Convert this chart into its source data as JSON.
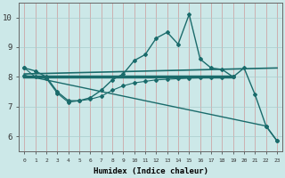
{
  "xlabel": "Humidex (Indice chaleur)",
  "bg_color": "#cce8e8",
  "grid_color": "#aacccc",
  "line_color": "#1a6b6b",
  "x_ticks": [
    0,
    1,
    2,
    3,
    4,
    5,
    6,
    7,
    8,
    9,
    10,
    11,
    12,
    13,
    14,
    15,
    16,
    17,
    18,
    19,
    20,
    21,
    22,
    23
  ],
  "y_ticks": [
    6,
    7,
    8,
    9,
    10
  ],
  "ylim": [
    5.5,
    10.5
  ],
  "xlim": [
    -0.5,
    23.5
  ],
  "series": [
    {
      "x": [
        0,
        1,
        2,
        3,
        4,
        5,
        6,
        7,
        8,
        9,
        10,
        11,
        12,
        13,
        14,
        15,
        16,
        17,
        18,
        19,
        20,
        21,
        22,
        23
      ],
      "y": [
        8.3,
        8.2,
        8.0,
        7.5,
        7.2,
        7.2,
        7.3,
        7.55,
        7.9,
        8.1,
        8.55,
        8.75,
        9.3,
        9.5,
        9.1,
        10.1,
        8.6,
        8.3,
        8.25,
        8.0,
        8.3,
        7.4,
        6.35,
        5.85
      ],
      "linewidth": 1.0,
      "markersize": 2.0,
      "linestyle": "-"
    },
    {
      "x": [
        0,
        23
      ],
      "y": [
        8.1,
        8.3
      ],
      "linewidth": 1.2,
      "markersize": 0,
      "linestyle": "-"
    },
    {
      "x": [
        0,
        19
      ],
      "y": [
        8.0,
        8.0
      ],
      "linewidth": 2.5,
      "markersize": 0,
      "linestyle": "-"
    },
    {
      "x": [
        0,
        1,
        2,
        3,
        4,
        5,
        6,
        7,
        8,
        9,
        10,
        11,
        12,
        13,
        14,
        15,
        16,
        17,
        18,
        19
      ],
      "y": [
        8.3,
        8.0,
        7.95,
        7.45,
        7.15,
        7.2,
        7.25,
        7.35,
        7.55,
        7.7,
        7.8,
        7.85,
        7.9,
        7.92,
        7.94,
        7.96,
        7.97,
        7.98,
        7.99,
        8.0
      ],
      "linewidth": 0.8,
      "markersize": 2.0,
      "linestyle": "-"
    },
    {
      "x": [
        0,
        22,
        23
      ],
      "y": [
        8.05,
        6.35,
        5.85
      ],
      "linewidth": 1.0,
      "markersize": 2.0,
      "linestyle": "-"
    }
  ]
}
